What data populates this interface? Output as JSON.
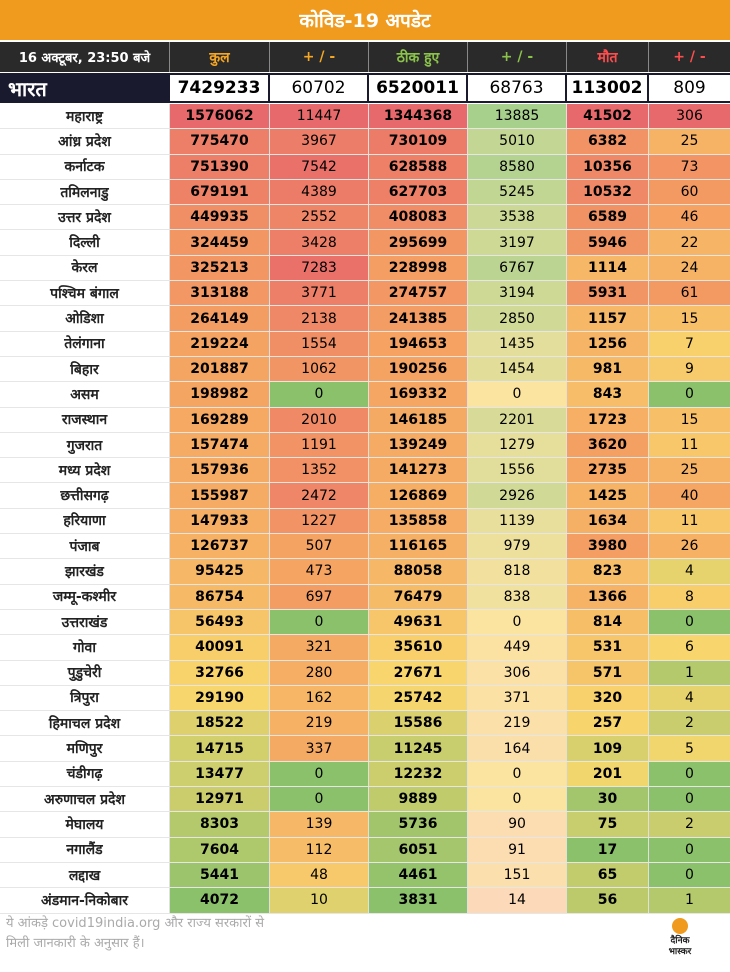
{
  "title": "कोविड-19 अपडेट",
  "header": {
    "date": "16 अक्टूबर, 23:50 बजे",
    "total": "कुल",
    "change1": "+ / -",
    "recovered": "ठीक हुए",
    "change2": "+ / -",
    "deaths": "मौत",
    "change3": "+ / -"
  },
  "india": {
    "name": "भारत",
    "total": "7429233",
    "total_change": "60702",
    "recovered": "6520011",
    "recovered_change": "68763",
    "deaths": "113002",
    "deaths_change": "809"
  },
  "rows": [
    [
      "महाराष्ट्र",
      "1576062",
      "11447",
      "1344368",
      "13885",
      "41502",
      "306"
    ],
    [
      "आंध्र प्रदेश",
      "775470",
      "3967",
      "730109",
      "5010",
      "6382",
      "25"
    ],
    [
      "कर्नाटक",
      "751390",
      "7542",
      "628588",
      "8580",
      "10356",
      "73"
    ],
    [
      "तमिलनाडु",
      "679191",
      "4389",
      "627703",
      "5245",
      "10532",
      "60"
    ],
    [
      "उत्तर प्रदेश",
      "449935",
      "2552",
      "408083",
      "3538",
      "6589",
      "46"
    ],
    [
      "दिल्ली",
      "324459",
      "3428",
      "295699",
      "3197",
      "5946",
      "22"
    ],
    [
      "केरल",
      "325213",
      "7283",
      "228998",
      "6767",
      "1114",
      "24"
    ],
    [
      "पश्चिम बंगाल",
      "313188",
      "3771",
      "274757",
      "3194",
      "5931",
      "61"
    ],
    [
      "ओडिशा",
      "264149",
      "2138",
      "241385",
      "2850",
      "1157",
      "15"
    ],
    [
      "तेलंगाना",
      "219224",
      "1554",
      "194653",
      "1435",
      "1256",
      "7"
    ],
    [
      "बिहार",
      "201887",
      "1062",
      "190256",
      "1454",
      "981",
      "9"
    ],
    [
      "असम",
      "198982",
      "0",
      "169332",
      "0",
      "843",
      "0"
    ],
    [
      "राजस्थान",
      "169289",
      "2010",
      "146185",
      "2201",
      "1723",
      "15"
    ],
    [
      "गुजरात",
      "157474",
      "1191",
      "139249",
      "1279",
      "3620",
      "11"
    ],
    [
      "मध्य प्रदेश",
      "157936",
      "1352",
      "141273",
      "1556",
      "2735",
      "25"
    ],
    [
      "छत्तीसगढ़",
      "155987",
      "2472",
      "126869",
      "2926",
      "1425",
      "40"
    ],
    [
      "हरियाणा",
      "147933",
      "1227",
      "135858",
      "1139",
      "1634",
      "11"
    ],
    [
      "पंजाब",
      "126737",
      "507",
      "116165",
      "979",
      "3980",
      "26"
    ],
    [
      "झारखंड",
      "95425",
      "473",
      "88058",
      "818",
      "823",
      "4"
    ],
    [
      "जम्मू-कश्मीर",
      "86754",
      "697",
      "76479",
      "838",
      "1366",
      "8"
    ],
    [
      "उत्तराखंड",
      "56493",
      "0",
      "49631",
      "0",
      "814",
      "0"
    ],
    [
      "गोवा",
      "40091",
      "321",
      "35610",
      "449",
      "531",
      "6"
    ],
    [
      "पुडुचेरी",
      "32766",
      "280",
      "27671",
      "306",
      "571",
      "1"
    ],
    [
      "त्रिपुरा",
      "29190",
      "162",
      "25742",
      "371",
      "320",
      "4"
    ],
    [
      "हिमाचल प्रदेश",
      "18522",
      "219",
      "15586",
      "219",
      "257",
      "2"
    ],
    [
      "मणिपुर",
      "14715",
      "337",
      "11245",
      "164",
      "109",
      "5"
    ],
    [
      "चंडीगढ़",
      "13477",
      "0",
      "12232",
      "0",
      "201",
      "0"
    ],
    [
      "अरुणाचल प्रदेश",
      "12971",
      "0",
      "9889",
      "0",
      "30",
      "0"
    ],
    [
      "मेघालय",
      "8303",
      "139",
      "5736",
      "90",
      "75",
      "2"
    ],
    [
      "नगालैंड",
      "7604",
      "112",
      "6051",
      "91",
      "17",
      "0"
    ],
    [
      "लद्दाख",
      "5441",
      "48",
      "4461",
      "151",
      "65",
      "0"
    ],
    [
      "अंडमान-निकोबार",
      "4072",
      "10",
      "3831",
      "14",
      "56",
      "1"
    ]
  ],
  "colors": {
    "title_bg": "#f09a1e",
    "header_total": "#f5a623",
    "header_recovered": "#7cb342",
    "header_deaths": "#e53935",
    "high": "#e8696b",
    "mid": "#f7c96a",
    "low": "#8cc16c"
  },
  "footer": {
    "note_line1": "ये आंकड़े covid19india.org और राज्य सरकारों से",
    "note_line2": "मिली जानकारी के अनुसार हैं।",
    "logo_line1": "दैनिक",
    "logo_line2": "भास्कर"
  }
}
